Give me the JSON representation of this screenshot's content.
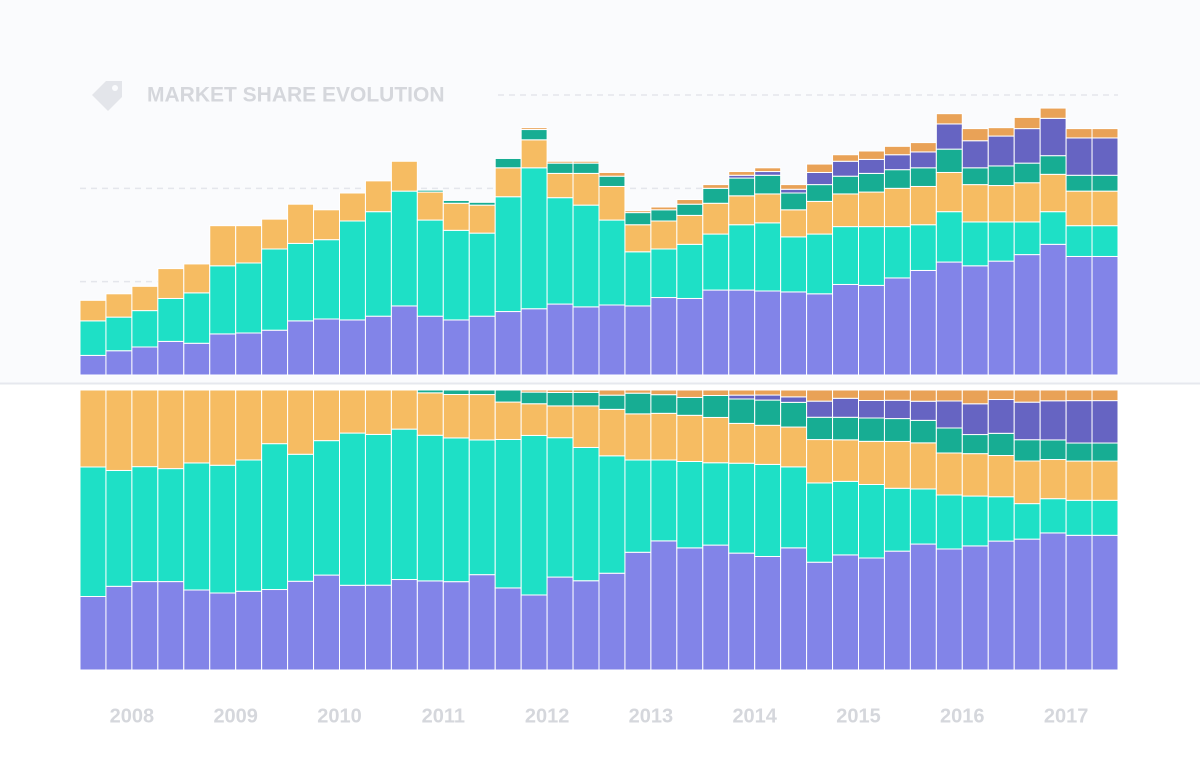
{
  "chart_data": {
    "type": "stacked-bar",
    "title": "MARKET SHARE EVOLUTION",
    "year_labels": [
      "2008",
      "2009",
      "2010",
      "2011",
      "2012",
      "2013",
      "2014",
      "2015",
      "2016",
      "2017"
    ],
    "ylim": [
      0,
      300
    ],
    "yticks": [
      100,
      200,
      300
    ],
    "grid": true,
    "series": [
      {
        "color": "#8284e8",
        "values": [
          21,
          26,
          30,
          36,
          34,
          44,
          45,
          48,
          58,
          60,
          59,
          63,
          74,
          63,
          59,
          63,
          68,
          71,
          76,
          73,
          75,
          74,
          83,
          82,
          91,
          91,
          90,
          89,
          87,
          97,
          96,
          104,
          112,
          121,
          117,
          122,
          129,
          140,
          127,
          127
        ]
      },
      {
        "color": "#1ee0c6",
        "values": [
          37,
          36,
          39,
          46,
          54,
          73,
          75,
          87,
          83,
          85,
          106,
          112,
          123,
          103,
          96,
          89,
          123,
          151,
          114,
          109,
          91,
          58,
          52,
          58,
          60,
          70,
          73,
          59,
          64,
          62,
          63,
          55,
          49,
          54,
          47,
          42,
          35,
          35,
          33,
          33
        ]
      },
      {
        "color": "#f6bc62",
        "values": [
          22,
          25,
          26,
          32,
          31,
          43,
          40,
          32,
          42,
          32,
          30,
          33,
          32,
          30,
          29,
          30,
          31,
          30,
          26,
          34,
          36,
          29,
          30,
          31,
          33,
          31,
          31,
          29,
          35,
          35,
          37,
          41,
          41,
          42,
          40,
          39,
          42,
          40,
          37,
          37
        ]
      },
      {
        "color": "#17ad93",
        "values": [
          0,
          0,
          0,
          0,
          0,
          0,
          0,
          0,
          0,
          0,
          0,
          0,
          0,
          2,
          3,
          3,
          10,
          11,
          11,
          11,
          11,
          13,
          12,
          12,
          16,
          19,
          20,
          18,
          18,
          19,
          20,
          20,
          20,
          25,
          18,
          21,
          21,
          20,
          17,
          17
        ]
      },
      {
        "color": "#6664c2",
        "values": [
          0,
          0,
          0,
          0,
          0,
          0,
          0,
          0,
          0,
          0,
          0,
          0,
          0,
          0,
          0,
          0,
          0,
          0,
          0,
          0,
          0,
          0,
          0,
          0,
          0,
          3,
          4,
          4,
          13,
          16,
          15,
          16,
          17,
          27,
          29,
          32,
          37,
          40,
          40,
          40
        ]
      },
      {
        "color": "#e9a257",
        "values": [
          0,
          0,
          0,
          0,
          0,
          0,
          0,
          0,
          0,
          0,
          0,
          0,
          0,
          0,
          0,
          0,
          0,
          2,
          2,
          2,
          4,
          2,
          3,
          5,
          4,
          4,
          4,
          5,
          9,
          7,
          9,
          9,
          10,
          11,
          13,
          9,
          12,
          11,
          10,
          10
        ]
      }
    ]
  }
}
